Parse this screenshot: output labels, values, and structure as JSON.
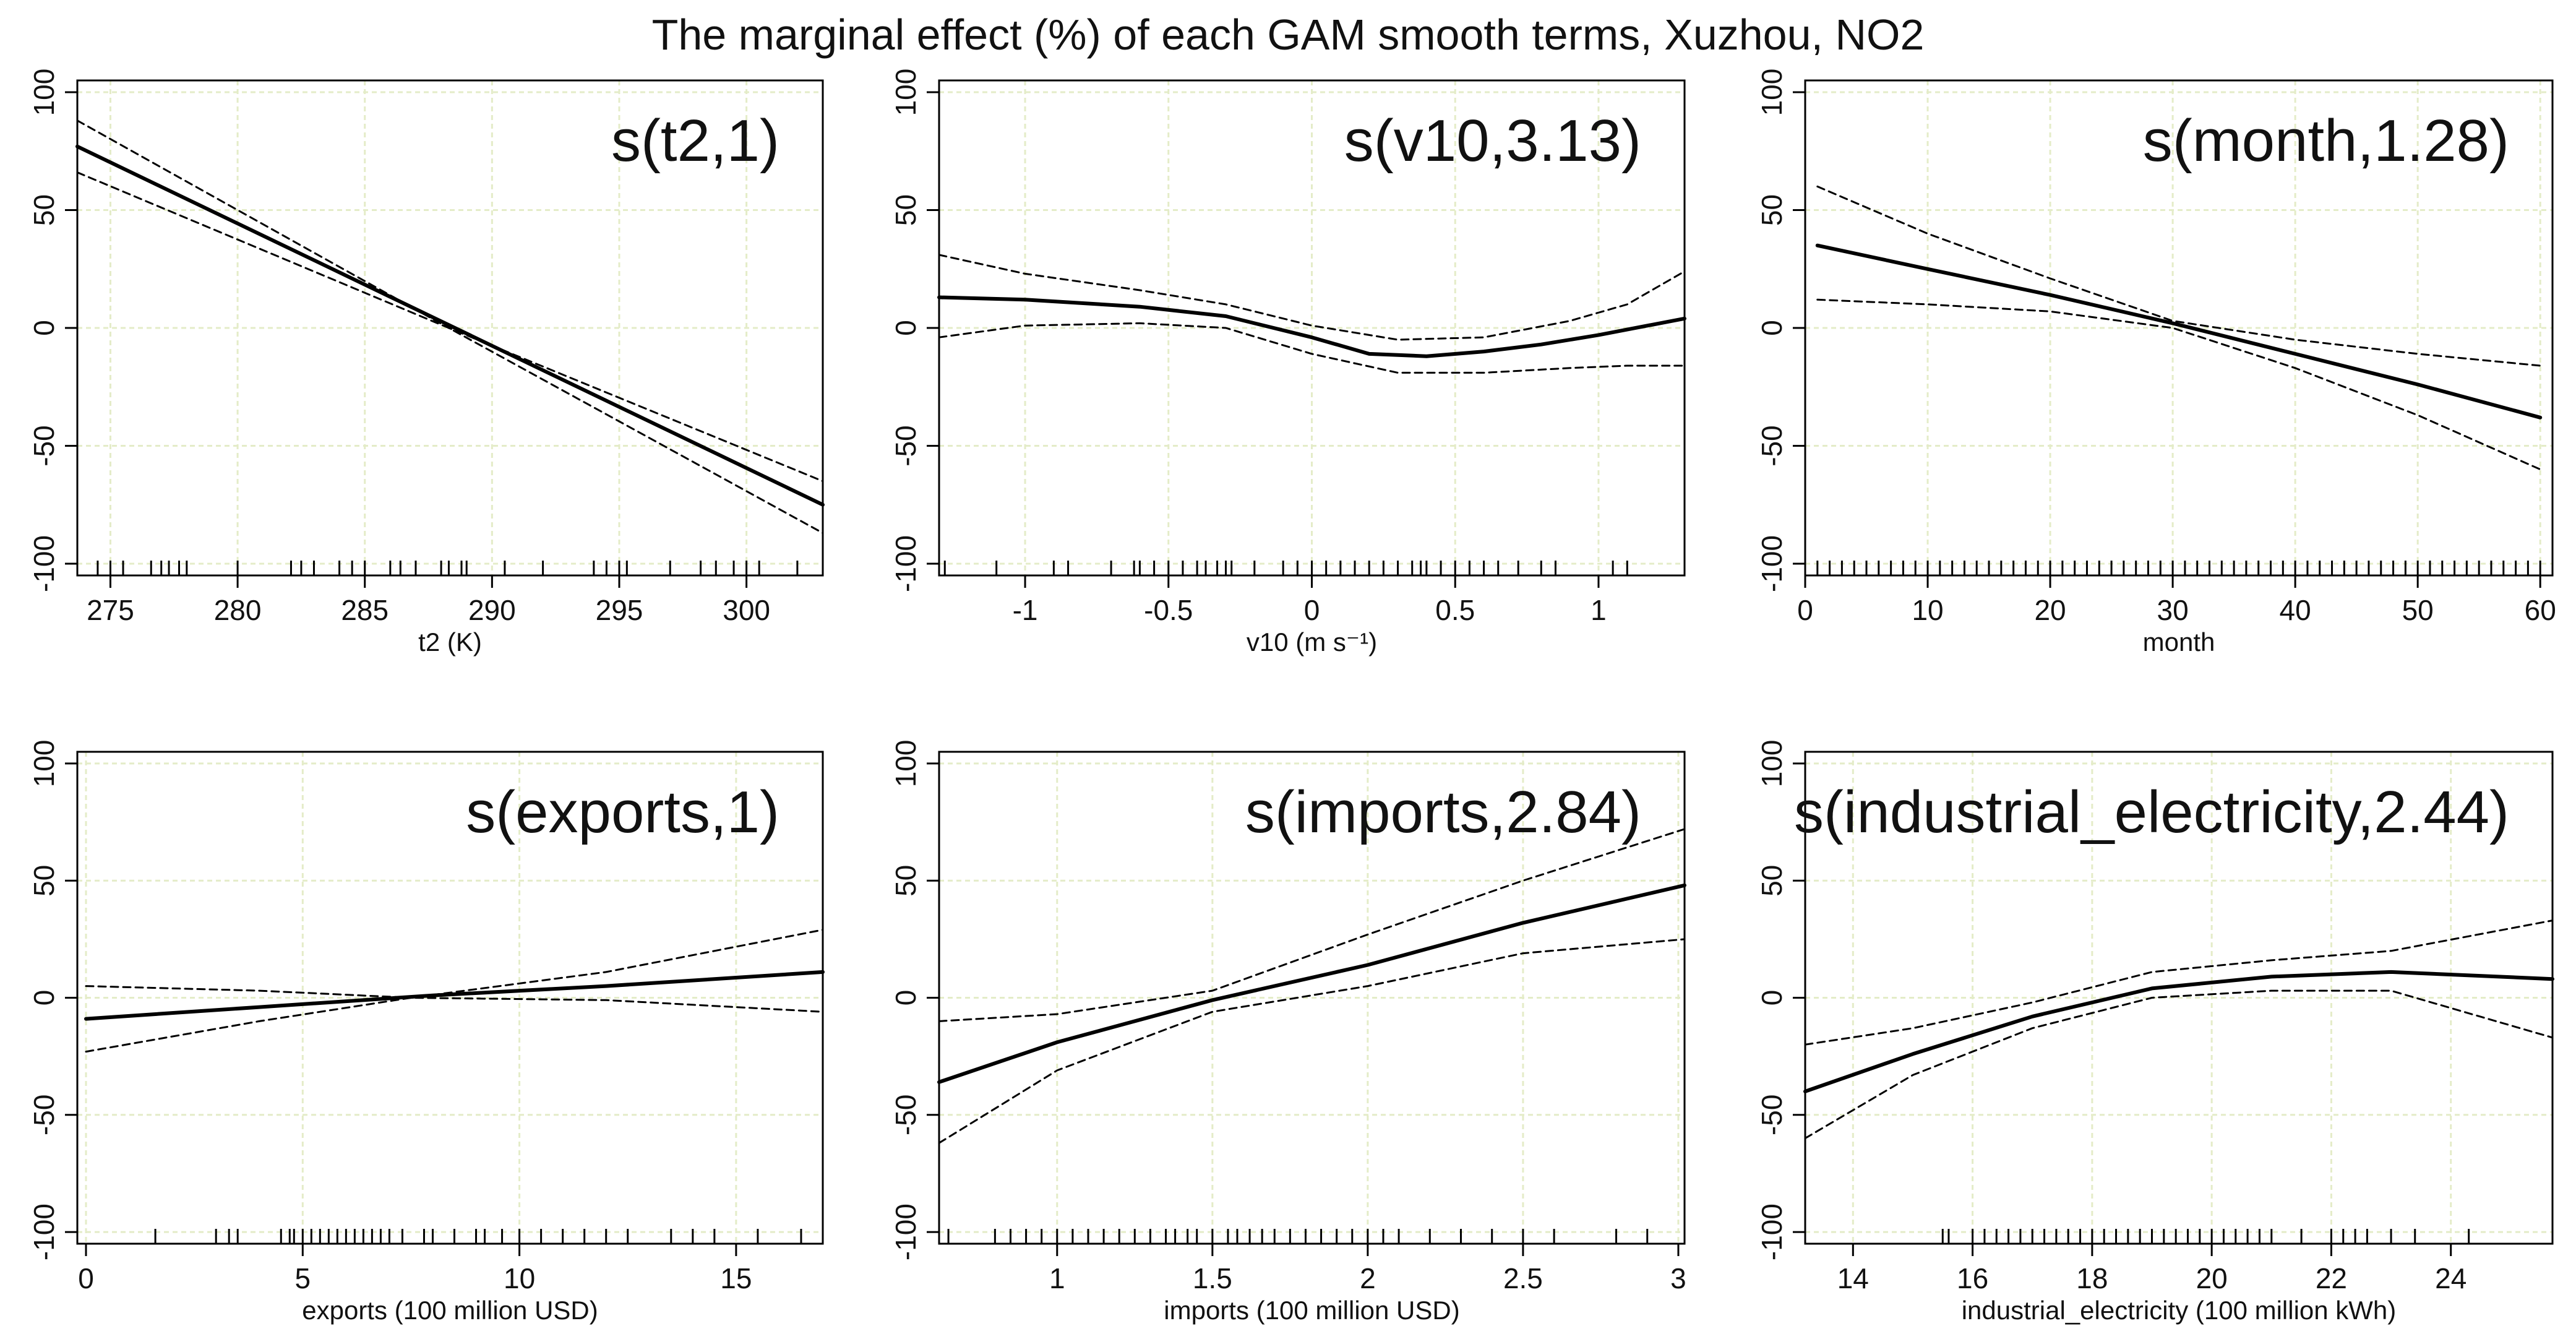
{
  "figure_title": "The marginal effect (%) of each GAM smooth terms, Xuzhou, NO2",
  "colors": {
    "line": "#000000",
    "grid": "#e4ecc8",
    "axis": "#000000"
  },
  "chart_data": [
    {
      "type": "line",
      "title": "s(t2,1)",
      "xlabel": "t2 (K)",
      "ylabel": "",
      "xlim": [
        273.7,
        303.0
      ],
      "ylim": [
        -105,
        105
      ],
      "xticks": [
        275,
        280,
        285,
        290,
        295,
        300
      ],
      "yticks": [
        -100,
        -50,
        0,
        50,
        100
      ],
      "grid": true,
      "series": [
        {
          "name": "fit",
          "style": "solid",
          "x": [
            273.7,
            303.0
          ],
          "y": [
            77,
            -75
          ]
        },
        {
          "name": "upper",
          "style": "dashed",
          "x": [
            273.7,
            288.3,
            303.0
          ],
          "y": [
            88,
            0,
            -65
          ]
        },
        {
          "name": "lower",
          "style": "dashed",
          "x": [
            273.7,
            288.3,
            303.0
          ],
          "y": [
            66,
            0,
            -87
          ]
        }
      ],
      "rug": [
        274.5,
        275.0,
        275.5,
        276.6,
        277.0,
        277.3,
        277.7,
        278.0,
        280.0,
        282.1,
        282.5,
        283.0,
        284.0,
        284.5,
        285.0,
        286.0,
        286.4,
        287.0,
        288.0,
        288.3,
        288.8,
        289.0,
        290.5,
        292.0,
        294.0,
        294.5,
        295.0,
        295.3,
        297.0,
        298.2,
        298.8,
        299.5,
        300.0,
        300.5,
        302.0
      ]
    },
    {
      "type": "line",
      "title": "s(v10,3.13)",
      "xlabel": "v10 (m s⁻¹)",
      "ylabel": "",
      "xlim": [
        -1.3,
        1.3
      ],
      "ylim": [
        -105,
        105
      ],
      "xticks": [
        -1.0,
        -0.5,
        0.0,
        0.5,
        1.0
      ],
      "yticks": [
        -100,
        -50,
        0,
        50,
        100
      ],
      "grid": true,
      "series": [
        {
          "name": "fit",
          "style": "solid",
          "x": [
            -1.3,
            -1.0,
            -0.6,
            -0.3,
            0.0,
            0.2,
            0.4,
            0.6,
            0.8,
            1.0,
            1.3
          ],
          "y": [
            13,
            12,
            9,
            5,
            -4,
            -11,
            -12,
            -10,
            -7,
            -3,
            4
          ]
        },
        {
          "name": "upper",
          "style": "dashed",
          "x": [
            -1.3,
            -1.0,
            -0.6,
            -0.3,
            0.0,
            0.3,
            0.6,
            0.9,
            1.1,
            1.3
          ],
          "y": [
            31,
            23,
            16,
            10,
            1,
            -5,
            -4,
            3,
            10,
            24
          ]
        },
        {
          "name": "lower",
          "style": "dashed",
          "x": [
            -1.3,
            -1.0,
            -0.6,
            -0.3,
            0.0,
            0.3,
            0.6,
            0.9,
            1.1,
            1.3
          ],
          "y": [
            -4,
            1,
            2,
            0,
            -11,
            -19,
            -19,
            -17,
            -16,
            -16
          ]
        }
      ],
      "rug": [
        -1.28,
        -1.1,
        -0.9,
        -0.85,
        -0.7,
        -0.62,
        -0.6,
        -0.55,
        -0.5,
        -0.45,
        -0.4,
        -0.37,
        -0.33,
        -0.3,
        -0.28,
        -0.2,
        -0.1,
        -0.05,
        0.0,
        0.05,
        0.1,
        0.15,
        0.2,
        0.25,
        0.3,
        0.35,
        0.38,
        0.4,
        0.45,
        0.5,
        0.55,
        0.6,
        0.65,
        0.72,
        0.8,
        0.85,
        1.05,
        1.1
      ]
    },
    {
      "type": "line",
      "title": "s(month,1.28)",
      "xlabel": "month",
      "ylabel": "",
      "xlim": [
        0,
        61
      ],
      "ylim": [
        -105,
        105
      ],
      "xticks": [
        0,
        10,
        20,
        30,
        40,
        50,
        60
      ],
      "yticks": [
        -100,
        -50,
        0,
        50,
        100
      ],
      "grid": true,
      "series": [
        {
          "name": "fit",
          "style": "solid",
          "x": [
            1,
            10,
            20,
            30,
            40,
            50,
            60
          ],
          "y": [
            35,
            25,
            14,
            2,
            -11,
            -24,
            -38
          ]
        },
        {
          "name": "upper",
          "style": "dashed",
          "x": [
            1,
            10,
            20,
            30,
            40,
            50,
            60
          ],
          "y": [
            60,
            40,
            21,
            3,
            -5,
            -11,
            -16
          ]
        },
        {
          "name": "lower",
          "style": "dashed",
          "x": [
            1,
            10,
            20,
            30,
            40,
            50,
            60
          ],
          "y": [
            12,
            10,
            7,
            0,
            -17,
            -37,
            -60
          ]
        }
      ],
      "rug": [
        1,
        2,
        3,
        4,
        5,
        6,
        7,
        8,
        9,
        10,
        11,
        12,
        13,
        14,
        15,
        16,
        17,
        18,
        19,
        20,
        21,
        22,
        23,
        24,
        25,
        26,
        27,
        28,
        29,
        30,
        31,
        32,
        33,
        34,
        35,
        36,
        37,
        38,
        39,
        40,
        41,
        42,
        43,
        44,
        45,
        46,
        47,
        48,
        49,
        50,
        51,
        52,
        53,
        54,
        55,
        56,
        57,
        58,
        59,
        60
      ]
    },
    {
      "type": "line",
      "title": "s(exports,1)",
      "xlabel": "exports (100 million USD)",
      "ylabel": "",
      "xlim": [
        -0.2,
        17.0
      ],
      "ylim": [
        -105,
        105
      ],
      "xticks": [
        0,
        5,
        10,
        15
      ],
      "yticks": [
        -100,
        -50,
        0,
        50,
        100
      ],
      "grid": true,
      "series": [
        {
          "name": "fit",
          "style": "solid",
          "x": [
            0.0,
            4.0,
            8.0,
            12.0,
            17.0
          ],
          "y": [
            -9,
            -4,
            1,
            5,
            11
          ]
        },
        {
          "name": "upper",
          "style": "dashed",
          "x": [
            0.0,
            4.0,
            7.5,
            12.0,
            17.0
          ],
          "y": [
            5,
            3,
            0,
            11,
            29
          ]
        },
        {
          "name": "lower",
          "style": "dashed",
          "x": [
            0.0,
            4.0,
            7.5,
            12.0,
            17.0
          ],
          "y": [
            -23,
            -10,
            0,
            -1,
            -6
          ]
        }
      ],
      "rug": [
        1.6,
        3.0,
        3.3,
        3.5,
        4.5,
        4.7,
        4.8,
        5.0,
        5.2,
        5.4,
        5.6,
        5.8,
        6.0,
        6.2,
        6.4,
        6.6,
        6.8,
        7.0,
        7.3,
        7.8,
        8.0,
        8.5,
        9.0,
        9.2,
        9.6,
        10.0,
        10.5,
        11.0,
        11.5,
        12.0,
        12.5,
        13.5,
        14.0,
        14.5,
        15.5,
        16.5
      ]
    },
    {
      "type": "line",
      "title": "s(imports,2.84)",
      "xlabel": "imports (100 million USD)",
      "ylabel": "",
      "xlim": [
        0.62,
        3.02
      ],
      "ylim": [
        -105,
        105
      ],
      "xticks": [
        1.0,
        1.5,
        2.0,
        2.5,
        3.0
      ],
      "yticks": [
        -100,
        -50,
        0,
        50,
        100
      ],
      "grid": true,
      "series": [
        {
          "name": "fit",
          "style": "solid",
          "x": [
            0.62,
            1.0,
            1.5,
            2.0,
            2.5,
            3.02
          ],
          "y": [
            -36,
            -19,
            -1,
            14,
            32,
            48
          ]
        },
        {
          "name": "upper",
          "style": "dashed",
          "x": [
            0.62,
            1.0,
            1.5,
            2.0,
            2.5,
            3.02
          ],
          "y": [
            -10,
            -7,
            3,
            27,
            50,
            72
          ]
        },
        {
          "name": "lower",
          "style": "dashed",
          "x": [
            0.62,
            1.0,
            1.5,
            2.0,
            2.5,
            3.02
          ],
          "y": [
            -62,
            -31,
            -6,
            5,
            19,
            25
          ]
        }
      ],
      "rug": [
        0.65,
        0.8,
        0.85,
        0.9,
        0.95,
        1.0,
        1.05,
        1.1,
        1.15,
        1.2,
        1.25,
        1.3,
        1.35,
        1.38,
        1.42,
        1.45,
        1.5,
        1.55,
        1.58,
        1.62,
        1.66,
        1.7,
        1.75,
        1.8,
        1.85,
        1.9,
        1.95,
        2.0,
        2.05,
        2.1,
        2.2,
        2.3,
        2.4,
        2.5,
        2.6,
        2.8,
        2.9
      ]
    },
    {
      "type": "line",
      "title": "s(industrial_electricity,2.44)",
      "xlabel": "industrial_electricity (100 million kWh)",
      "ylabel": "",
      "xlim": [
        13.2,
        25.7
      ],
      "ylim": [
        -105,
        105
      ],
      "xticks": [
        14,
        16,
        18,
        20,
        22,
        24
      ],
      "yticks": [
        -100,
        -50,
        0,
        50,
        100
      ],
      "grid": true,
      "series": [
        {
          "name": "fit",
          "style": "solid",
          "x": [
            13.2,
            15.0,
            17.0,
            19.0,
            21.0,
            23.0,
            25.7
          ],
          "y": [
            -40,
            -24,
            -8,
            4,
            9,
            11,
            8
          ]
        },
        {
          "name": "upper",
          "style": "dashed",
          "x": [
            13.2,
            15.0,
            17.0,
            19.0,
            21.0,
            23.0,
            25.7
          ],
          "y": [
            -20,
            -13,
            -2,
            11,
            16,
            20,
            33
          ]
        },
        {
          "name": "lower",
          "style": "dashed",
          "x": [
            13.2,
            15.0,
            17.0,
            19.0,
            21.0,
            23.0,
            25.7
          ],
          "y": [
            -60,
            -33,
            -13,
            0,
            3,
            3,
            -17
          ]
        }
      ],
      "rug": [
        15.5,
        15.6,
        16.0,
        16.2,
        16.4,
        16.6,
        16.8,
        17.0,
        17.2,
        17.4,
        17.6,
        17.8,
        18.0,
        18.2,
        18.4,
        18.6,
        18.8,
        19.0,
        19.2,
        19.4,
        19.6,
        19.8,
        20.0,
        20.2,
        20.4,
        20.6,
        20.8,
        21.0,
        21.5,
        22.0,
        22.2,
        22.4,
        22.6,
        23.0,
        23.4,
        24.3
      ]
    }
  ]
}
